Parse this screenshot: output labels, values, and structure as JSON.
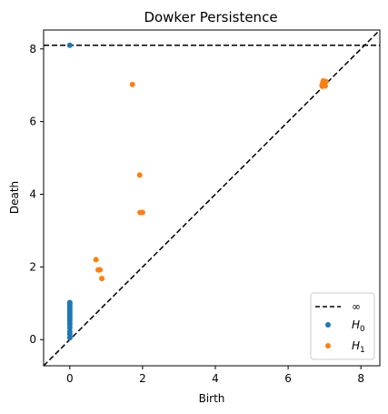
{
  "chart_data": {
    "type": "scatter",
    "title": "Dowker Persistence",
    "xlabel": "Birth",
    "ylabel": "Death",
    "xlim": [
      -0.72,
      8.52
    ],
    "ylim": [
      -0.72,
      8.52
    ],
    "xticks": [
      0,
      2,
      4,
      6,
      8
    ],
    "yticks": [
      0,
      2,
      4,
      6,
      8
    ],
    "grid": false,
    "legend_position": "lower-right",
    "infinity_line": {
      "label": "∞",
      "y": 8.1,
      "style": "dashed",
      "color": "#000000"
    },
    "diagonal": {
      "style": "dashed",
      "color": "#000000"
    },
    "series": [
      {
        "name": "H0",
        "name_sub": "0",
        "color": "#1f77b4",
        "points": [
          [
            0,
            8.1
          ],
          [
            0,
            1.02
          ],
          [
            0,
            0.97
          ],
          [
            0,
            0.9
          ],
          [
            0,
            0.83
          ],
          [
            0,
            0.76
          ],
          [
            0,
            0.7
          ],
          [
            0,
            0.64
          ],
          [
            0,
            0.58
          ],
          [
            0,
            0.5
          ],
          [
            0,
            0.42
          ],
          [
            0,
            0.33
          ],
          [
            0,
            0.22
          ],
          [
            0,
            0.15
          ],
          [
            0,
            0.05
          ]
        ]
      },
      {
        "name": "H1",
        "name_sub": "1",
        "color": "#ff7f0e",
        "points": [
          [
            1.72,
            7.02
          ],
          [
            1.92,
            4.53
          ],
          [
            1.93,
            3.5
          ],
          [
            2.0,
            3.5
          ],
          [
            0.72,
            2.2
          ],
          [
            0.78,
            1.92
          ],
          [
            0.83,
            1.92
          ],
          [
            0.88,
            1.68
          ],
          [
            6.93,
            7.0
          ],
          [
            6.95,
            7.05
          ],
          [
            6.96,
            7.1
          ],
          [
            7.0,
            7.05
          ],
          [
            7.02,
            6.98
          ],
          [
            6.97,
            7.12
          ],
          [
            7.04,
            7.1
          ],
          [
            6.94,
            6.97
          ]
        ]
      }
    ]
  }
}
